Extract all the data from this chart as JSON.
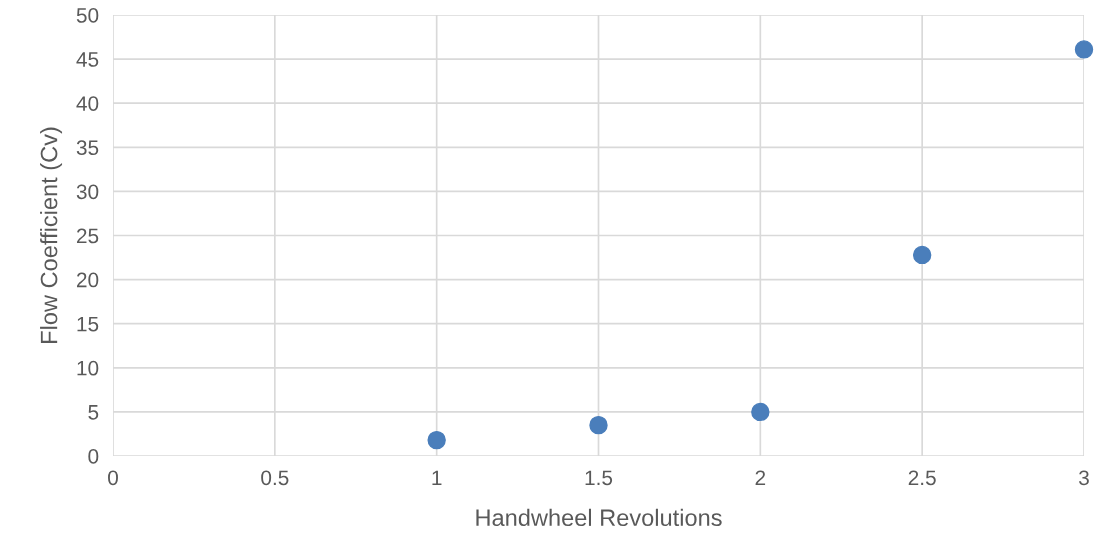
{
  "chart_data": {
    "type": "scatter",
    "xlabel": "Handwheel Revolutions",
    "ylabel": "Flow Coefficient (Cv)",
    "x": [
      1,
      1.5,
      2,
      2.5,
      3
    ],
    "series": [
      {
        "color": "#4a7ebb",
        "values": [
          1.8,
          3.5,
          5.0,
          22.8,
          46.1
        ]
      }
    ],
    "xlim": [
      0,
      3
    ],
    "xticks": [
      0,
      0.5,
      1,
      1.5,
      2,
      2.5,
      3
    ],
    "ylim": [
      0,
      50
    ],
    "yticks": [
      0,
      5,
      10,
      15,
      20,
      25,
      30,
      35,
      40,
      45,
      50
    ],
    "grid": true,
    "marker": "circle",
    "legend": false
  }
}
